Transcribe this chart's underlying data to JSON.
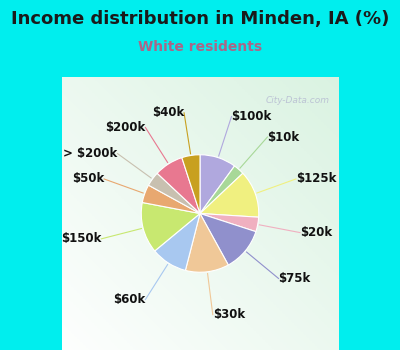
{
  "title": "Income distribution in Minden, IA (%)",
  "subtitle": "White residents",
  "title_color": "#1a1a1a",
  "subtitle_color": "#aa6688",
  "background_outer": "#00eeee",
  "background_chart": "#e8f8ee",
  "watermark": "City-Data.com",
  "labels": [
    "$100k",
    "$10k",
    "$125k",
    "$20k",
    "$75k",
    "$30k",
    "$60k",
    "$150k",
    "$50k",
    "> $200k",
    "$200k",
    "$40k"
  ],
  "values": [
    10,
    3,
    13,
    4,
    12,
    12,
    10,
    14,
    5,
    4,
    8,
    5
  ],
  "colors": [
    "#b0a8de",
    "#a8d898",
    "#f0f080",
    "#f0b0c0",
    "#9090cc",
    "#f0c898",
    "#a8c8f0",
    "#c8e870",
    "#e8a870",
    "#c8c0b0",
    "#e87890",
    "#c8a020"
  ],
  "label_fontsize": 8.5,
  "title_fontsize": 13,
  "subtitle_fontsize": 10
}
